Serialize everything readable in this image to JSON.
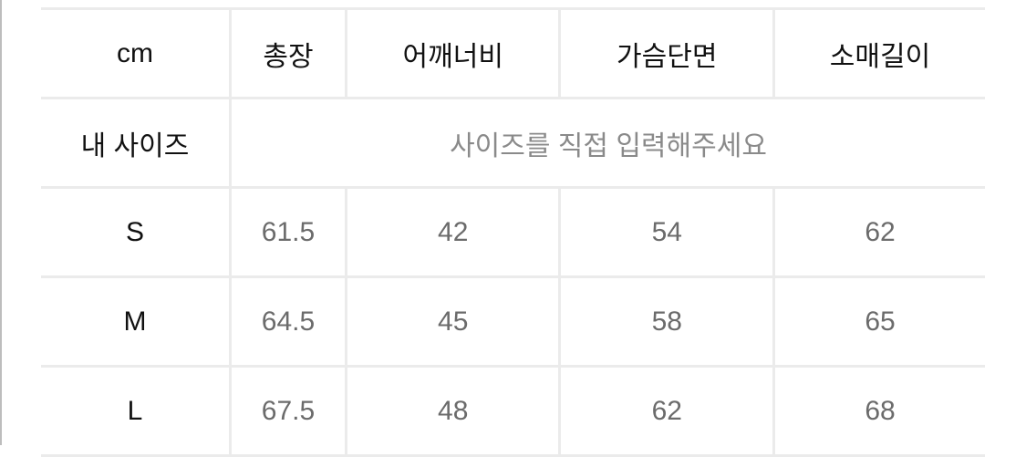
{
  "table": {
    "header": [
      "cm",
      "총장",
      "어깨너비",
      "가슴단면",
      "소매길이"
    ],
    "my_size": {
      "label": "내 사이즈",
      "placeholder": "사이즈를 직접 입력해주세요"
    },
    "rows": [
      {
        "size": "S",
        "values": [
          "61.5",
          "42",
          "54",
          "62"
        ]
      },
      {
        "size": "M",
        "values": [
          "64.5",
          "45",
          "58",
          "65"
        ]
      },
      {
        "size": "L",
        "values": [
          "67.5",
          "48",
          "62",
          "68"
        ]
      }
    ]
  }
}
